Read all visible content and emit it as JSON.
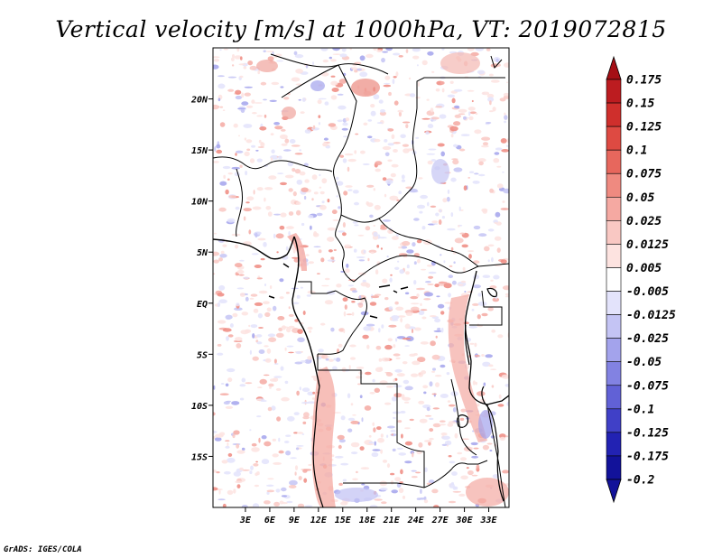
{
  "title": "Vertical velocity [m/s] at 1000hPa, VT: 2019072815",
  "credit": "GrADS: IGES/COLA",
  "map": {
    "lon_range": [
      -1,
      35.5
    ],
    "lat_range": [
      -20,
      25
    ],
    "lon_ticks": [
      {
        "value": 3,
        "label": "3E"
      },
      {
        "value": 6,
        "label": "6E"
      },
      {
        "value": 9,
        "label": "9E"
      },
      {
        "value": 12,
        "label": "12E"
      },
      {
        "value": 15,
        "label": "15E"
      },
      {
        "value": 18,
        "label": "18E"
      },
      {
        "value": 21,
        "label": "21E"
      },
      {
        "value": 24,
        "label": "24E"
      },
      {
        "value": 27,
        "label": "27E"
      },
      {
        "value": 30,
        "label": "30E"
      },
      {
        "value": 33,
        "label": "33E"
      }
    ],
    "lat_ticks": [
      {
        "value": 20,
        "label": "20N"
      },
      {
        "value": 15,
        "label": "15N"
      },
      {
        "value": 10,
        "label": "10N"
      },
      {
        "value": 5,
        "label": "5N"
      },
      {
        "value": 0,
        "label": "EQ"
      },
      {
        "value": -5,
        "label": "5S"
      },
      {
        "value": -10,
        "label": "10S"
      },
      {
        "value": -15,
        "label": "15S"
      }
    ]
  },
  "colorbar": {
    "levels": [
      {
        "label": "0.175",
        "color": "#a50f15"
      },
      {
        "label": "0.15",
        "color": "#bc1c20"
      },
      {
        "label": "0.125",
        "color": "#cf2f2c"
      },
      {
        "label": "0.1",
        "color": "#de4a42"
      },
      {
        "label": "0.075",
        "color": "#e7675d"
      },
      {
        "label": "0.05",
        "color": "#ef8a80"
      },
      {
        "label": "0.025",
        "color": "#f5a9a2"
      },
      {
        "label": "0.0125",
        "color": "#f9c8c3"
      },
      {
        "label": "0.005",
        "color": "#fde3e0"
      },
      {
        "label": "-0.005",
        "color": "#ffffff"
      },
      {
        "label": "-0.0125",
        "color": "#e3e3fb"
      },
      {
        "label": "-0.025",
        "color": "#c4c4f4"
      },
      {
        "label": "-0.05",
        "color": "#a3a3ec"
      },
      {
        "label": "-0.075",
        "color": "#8282e2"
      },
      {
        "label": "-0.1",
        "color": "#6161d6"
      },
      {
        "label": "-0.125",
        "color": "#4040c7"
      },
      {
        "label": "-0.175",
        "color": "#2222b3"
      },
      {
        "label": "-0.2",
        "color": "#12129a"
      }
    ],
    "top_color": "#a50f15",
    "bottom_color": "#12129a"
  }
}
